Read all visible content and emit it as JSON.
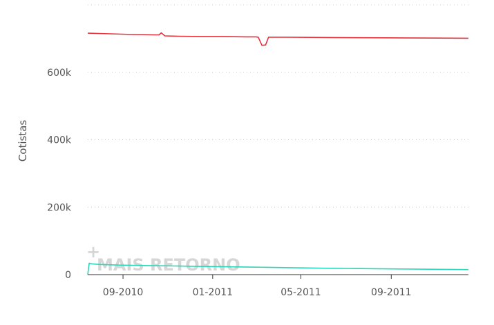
{
  "chart_data": {
    "type": "line",
    "ylabel": "Cotistas",
    "xlabel": "",
    "title": "",
    "ylim": [
      0,
      800000
    ],
    "y_ticks": [
      0,
      200000,
      400000,
      600000
    ],
    "y_tick_labels": [
      "0",
      "200k",
      "400k",
      "600k"
    ],
    "x_domain": [
      "2010-07-15",
      "2011-12-15"
    ],
    "x_ticks": [
      "2010-09-01",
      "2011-01-01",
      "2011-05-01",
      "2011-09-01"
    ],
    "x_tick_labels": [
      "09-2010",
      "01-2011",
      "05-2011",
      "09-2011"
    ],
    "grid": true,
    "colors": {
      "series_1": "#e8303a",
      "series_2": "#2ad6b8",
      "watermark": "#d6d6d6"
    },
    "series": [
      {
        "x": [
          "2010-07-15",
          "2010-08-15",
          "2010-09-15",
          "2010-10-15",
          "2010-10-20",
          "2010-10-23",
          "2010-10-28",
          "2010-11-15",
          "2010-12-15",
          "2011-01-15",
          "2011-02-15",
          "2011-03-01",
          "2011-03-04",
          "2011-03-09",
          "2011-03-14",
          "2011-03-18",
          "2011-04-15",
          "2011-06-15",
          "2011-09-15",
          "2011-12-15"
        ],
        "y": [
          716000,
          714000,
          712000,
          711000,
          711000,
          717000,
          708000,
          707000,
          706000,
          706000,
          705000,
          705000,
          704000,
          680000,
          681000,
          704000,
          704000,
          703000,
          702000,
          701000
        ]
      },
      {
        "x": [
          "2010-07-15",
          "2010-07-17",
          "2010-07-21",
          "2010-08-01",
          "2010-09-01",
          "2010-12-01",
          "2011-03-01",
          "2011-06-01",
          "2011-09-01",
          "2011-12-15"
        ],
        "y": [
          0,
          34000,
          32000,
          30000,
          28000,
          25000,
          22000,
          19000,
          17000,
          15000
        ]
      }
    ],
    "watermark": "MAIS RETORNO"
  }
}
